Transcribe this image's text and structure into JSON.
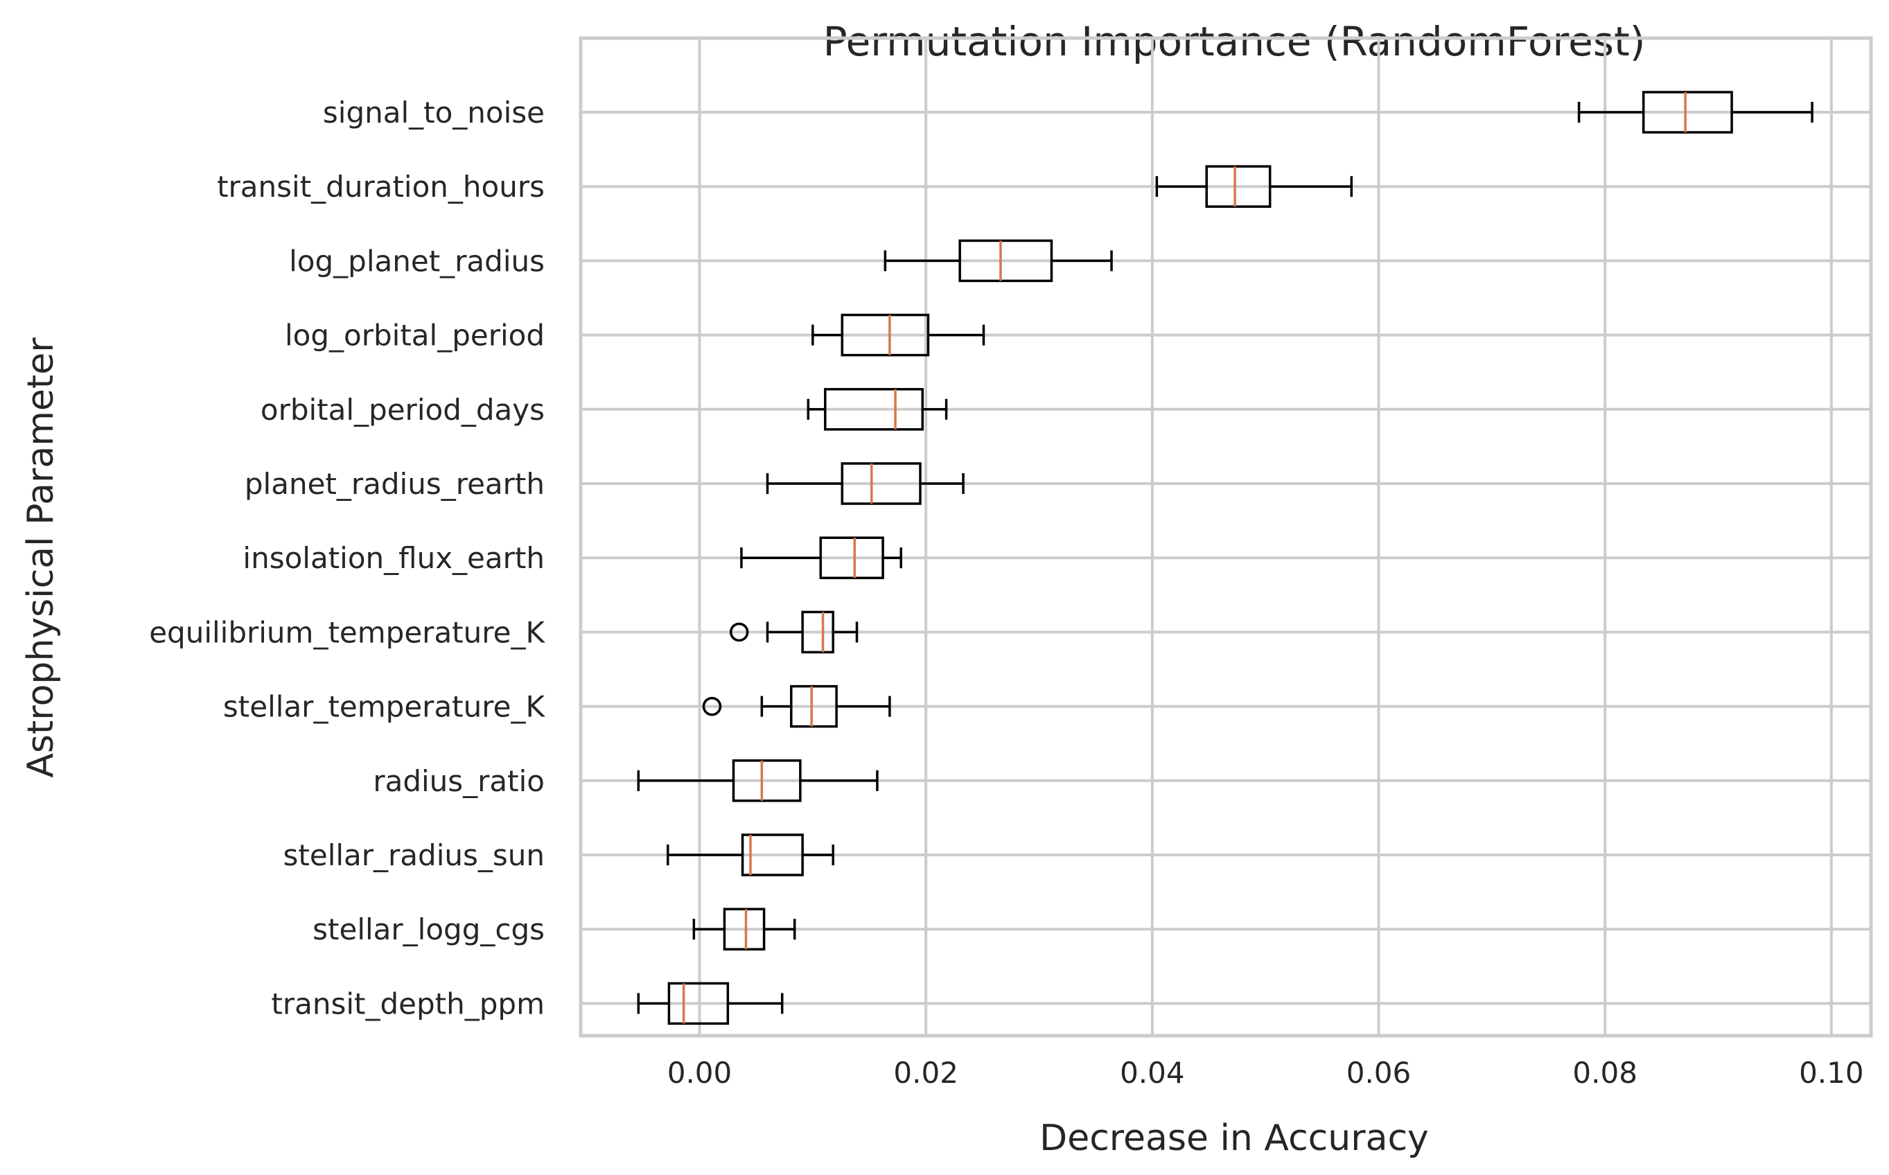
{
  "chart_data": {
    "type": "boxplot",
    "orientation": "horizontal",
    "title": "Permutation Importance (RandomForest)",
    "xlabel": "Decrease in Accuracy",
    "ylabel": "Astrophysical Parameter",
    "xlim": [
      -0.0105,
      0.1035
    ],
    "xticks": [
      0.0,
      0.02,
      0.04,
      0.06,
      0.08,
      0.1
    ],
    "xtick_labels": [
      "0.00",
      "0.02",
      "0.04",
      "0.06",
      "0.08",
      "0.10"
    ],
    "grid": true,
    "colors": {
      "box": "#000000",
      "median": "#d9774a",
      "grid": "#cccccc",
      "text": "#262626"
    },
    "categories": [
      "signal_to_noise",
      "transit_duration_hours",
      "log_planet_radius",
      "log_orbital_period",
      "orbital_period_days",
      "planet_radius_rearth",
      "insolation_flux_earth",
      "equilibrium_temperature_K",
      "stellar_temperature_K",
      "radius_ratio",
      "stellar_radius_sun",
      "stellar_logg_cgs",
      "transit_depth_ppm"
    ],
    "boxes": [
      {
        "whislo": 0.0777,
        "q1": 0.0834,
        "med": 0.0871,
        "q3": 0.0912,
        "whishi": 0.0983,
        "fliers": []
      },
      {
        "whislo": 0.0404,
        "q1": 0.0448,
        "med": 0.0473,
        "q3": 0.0504,
        "whishi": 0.0576,
        "fliers": []
      },
      {
        "whislo": 0.0164,
        "q1": 0.023,
        "med": 0.0266,
        "q3": 0.0311,
        "whishi": 0.0364,
        "fliers": []
      },
      {
        "whislo": 0.01,
        "q1": 0.0126,
        "med": 0.0168,
        "q3": 0.0202,
        "whishi": 0.0251,
        "fliers": []
      },
      {
        "whislo": 0.0096,
        "q1": 0.0111,
        "med": 0.0173,
        "q3": 0.0197,
        "whishi": 0.0218,
        "fliers": []
      },
      {
        "whislo": 0.006,
        "q1": 0.0126,
        "med": 0.0152,
        "q3": 0.0195,
        "whishi": 0.0233,
        "fliers": []
      },
      {
        "whislo": 0.0037,
        "q1": 0.0107,
        "med": 0.0137,
        "q3": 0.0162,
        "whishi": 0.0178,
        "fliers": []
      },
      {
        "whislo": 0.006,
        "q1": 0.0091,
        "med": 0.0109,
        "q3": 0.0118,
        "whishi": 0.0139,
        "fliers": [
          0.0035
        ]
      },
      {
        "whislo": 0.0055,
        "q1": 0.0081,
        "med": 0.0099,
        "q3": 0.0121,
        "whishi": 0.0168,
        "fliers": [
          0.0011
        ]
      },
      {
        "whislo": -0.0054,
        "q1": 0.003,
        "med": 0.0055,
        "q3": 0.0089,
        "whishi": 0.0157,
        "fliers": []
      },
      {
        "whislo": -0.0028,
        "q1": 0.0038,
        "med": 0.0045,
        "q3": 0.0091,
        "whishi": 0.0118,
        "fliers": []
      },
      {
        "whislo": -0.0005,
        "q1": 0.0022,
        "med": 0.0041,
        "q3": 0.0057,
        "whishi": 0.0084,
        "fliers": []
      },
      {
        "whislo": -0.0054,
        "q1": -0.0027,
        "med": -0.0014,
        "q3": 0.0025,
        "whishi": 0.0073,
        "fliers": []
      }
    ]
  }
}
